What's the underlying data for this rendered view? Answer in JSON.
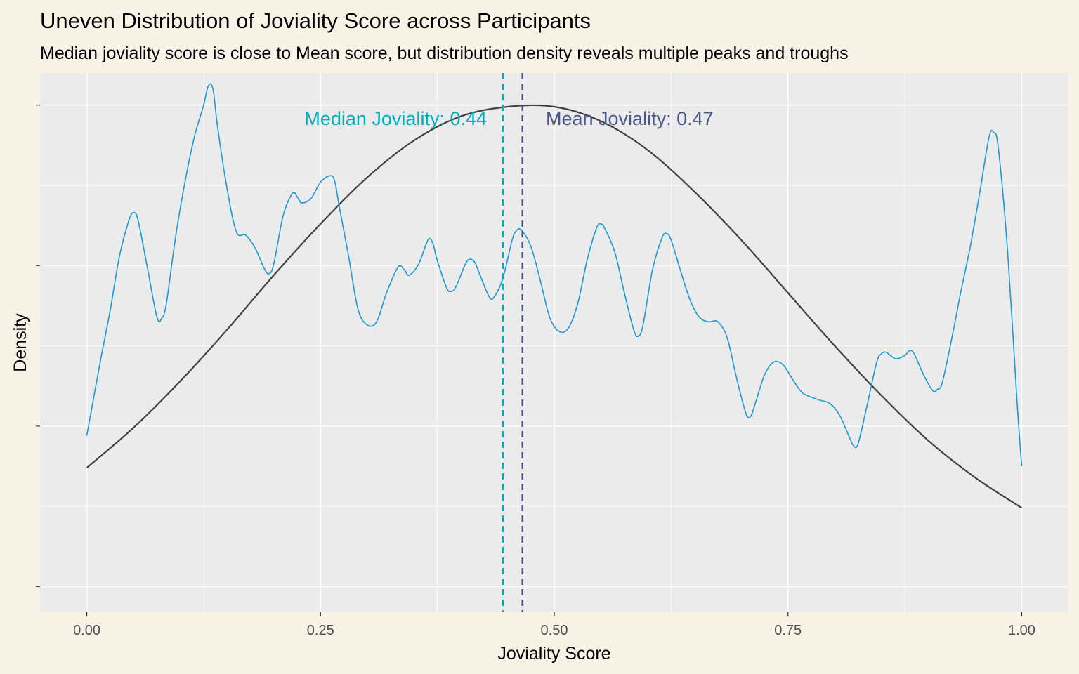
{
  "chart_data": {
    "type": "area",
    "title": "Uneven Distribution of Joviality Score across Participants",
    "subtitle": "Median joviality score is close to Mean score, but distribution density reveals multiple peaks and troughs",
    "xlabel": "Joviality Score",
    "ylabel": "Density",
    "xlim": [
      -0.05,
      1.05
    ],
    "ylim": [
      -0.16,
      3.2
    ],
    "x_ticks": [
      0,
      0.25,
      0.5,
      0.75,
      1
    ],
    "x_tick_labels": [
      "0.00",
      "0.25",
      "0.50",
      "0.75",
      "1.00"
    ],
    "y_ticks": [
      0,
      1,
      2,
      3
    ],
    "y_tick_labels": [
      "",
      "",
      "",
      ""
    ],
    "grid": true,
    "legend": "none",
    "colors": {
      "density": "#1f98d0",
      "normal": "#404040",
      "median": "#00aeb8",
      "mean": "#4b5787",
      "panel": "#ebebeb",
      "gridline": "#ffffff",
      "background": "#f9f2e7"
    },
    "annotations": {
      "median_label": "Median Joviality: 0.44",
      "mean_label": "Mean Joviality: 0.47",
      "median": 0.445,
      "mean": 0.466
    },
    "density_curve": {
      "x": [
        0.0,
        0.0075,
        0.015,
        0.025,
        0.035,
        0.045,
        0.05,
        0.055,
        0.065,
        0.075,
        0.08,
        0.085,
        0.095,
        0.105,
        0.115,
        0.125,
        0.13,
        0.135,
        0.14,
        0.15,
        0.16,
        0.17,
        0.18,
        0.19,
        0.195,
        0.2,
        0.21,
        0.22,
        0.225,
        0.23,
        0.24,
        0.25,
        0.26,
        0.265,
        0.27,
        0.28,
        0.29,
        0.3,
        0.31,
        0.32,
        0.33,
        0.335,
        0.34,
        0.345,
        0.355,
        0.365,
        0.37,
        0.375,
        0.385,
        0.39,
        0.395,
        0.405,
        0.41,
        0.415,
        0.42,
        0.43,
        0.435,
        0.445,
        0.455,
        0.46,
        0.465,
        0.475,
        0.485,
        0.495,
        0.505,
        0.515,
        0.525,
        0.535,
        0.545,
        0.55,
        0.555,
        0.565,
        0.575,
        0.585,
        0.59,
        0.595,
        0.605,
        0.615,
        0.62,
        0.625,
        0.635,
        0.645,
        0.655,
        0.665,
        0.675,
        0.685,
        0.695,
        0.705,
        0.71,
        0.715,
        0.725,
        0.735,
        0.745,
        0.755,
        0.765,
        0.775,
        0.785,
        0.795,
        0.805,
        0.815,
        0.82,
        0.825,
        0.835,
        0.845,
        0.85,
        0.855,
        0.865,
        0.875,
        0.88,
        0.885,
        0.895,
        0.905,
        0.91,
        0.915,
        0.925,
        0.935,
        0.945,
        0.955,
        0.965,
        0.97,
        0.975,
        0.985,
        0.995,
        1.0
      ],
      "y": [
        0.94,
        1.18,
        1.42,
        1.72,
        2.06,
        2.28,
        2.33,
        2.28,
        1.98,
        1.68,
        1.67,
        1.76,
        2.18,
        2.52,
        2.8,
        3.0,
        3.12,
        3.1,
        2.86,
        2.48,
        2.21,
        2.19,
        2.11,
        1.98,
        1.95,
        2.01,
        2.31,
        2.45,
        2.43,
        2.39,
        2.42,
        2.52,
        2.56,
        2.53,
        2.37,
        2.06,
        1.73,
        1.63,
        1.65,
        1.82,
        1.96,
        2.0,
        1.97,
        1.94,
        2.01,
        2.16,
        2.14,
        2.03,
        1.86,
        1.84,
        1.87,
        2.01,
        2.04,
        2.02,
        1.95,
        1.81,
        1.8,
        1.92,
        2.16,
        2.22,
        2.22,
        2.12,
        1.91,
        1.68,
        1.59,
        1.61,
        1.76,
        2.03,
        2.23,
        2.26,
        2.22,
        2.08,
        1.83,
        1.6,
        1.56,
        1.63,
        1.97,
        2.17,
        2.2,
        2.16,
        1.97,
        1.79,
        1.68,
        1.65,
        1.65,
        1.55,
        1.3,
        1.08,
        1.06,
        1.14,
        1.32,
        1.4,
        1.38,
        1.29,
        1.21,
        1.18,
        1.16,
        1.14,
        1.07,
        0.94,
        0.88,
        0.89,
        1.14,
        1.4,
        1.45,
        1.46,
        1.42,
        1.44,
        1.47,
        1.45,
        1.32,
        1.22,
        1.23,
        1.27,
        1.54,
        1.84,
        2.12,
        2.45,
        2.8,
        2.83,
        2.73,
        2.08,
        1.15,
        0.75
      ]
    },
    "normal_curve": {
      "x": [
        0.0,
        0.05,
        0.1,
        0.15,
        0.2,
        0.25,
        0.3,
        0.35,
        0.4,
        0.45,
        0.5,
        0.55,
        0.6,
        0.65,
        0.7,
        0.75,
        0.8,
        0.85,
        0.9,
        0.95,
        1.0
      ],
      "y": [
        0.74,
        0.99,
        1.28,
        1.6,
        1.94,
        2.26,
        2.55,
        2.78,
        2.93,
        2.99,
        2.99,
        2.9,
        2.72,
        2.46,
        2.16,
        1.83,
        1.5,
        1.19,
        0.91,
        0.68,
        0.49
      ]
    }
  }
}
